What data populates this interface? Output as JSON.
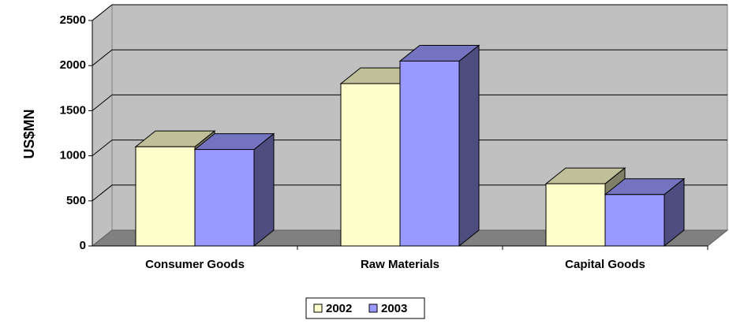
{
  "chart_data": {
    "type": "bar3d",
    "y_label": "US$MN",
    "categories": [
      "Consumer Goods",
      "Raw Materials",
      "Capital Goods"
    ],
    "series": [
      {
        "name": "2002",
        "color": "#ffffcc",
        "values": [
          1100,
          1800,
          690
        ]
      },
      {
        "name": "2003",
        "color": "#9999ff",
        "values": [
          1070,
          2050,
          570
        ]
      }
    ],
    "ylim": [
      0,
      2500
    ],
    "yticks": [
      0,
      500,
      1000,
      1500,
      2000,
      2500
    ],
    "grid": true,
    "legend": "bottom"
  }
}
